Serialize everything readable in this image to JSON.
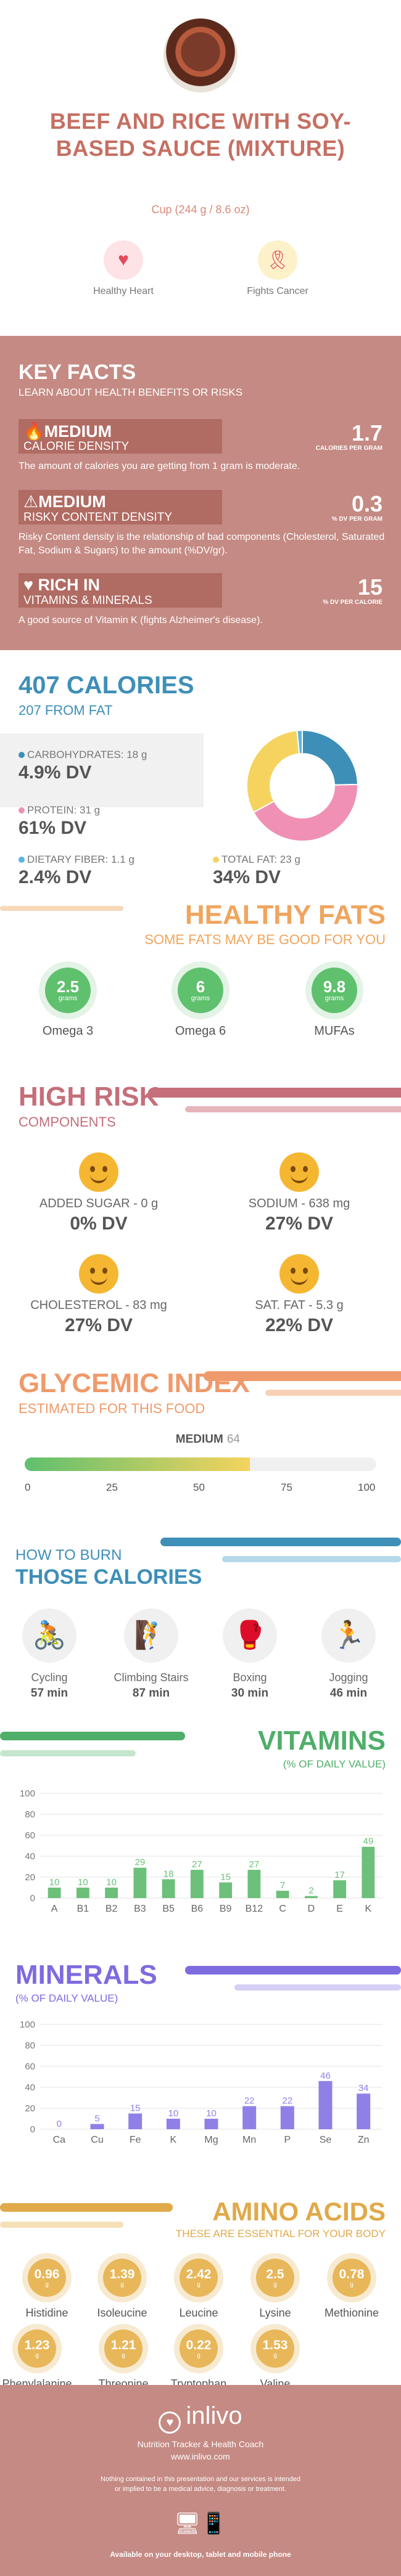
{
  "header": {
    "title": "BEEF AND RICE WITH SOY-BASED SAUCE (MIXTURE)",
    "serving": "Cup (244 g / 8.6 oz)",
    "badges": [
      {
        "label": "Healthy Heart",
        "icon": "heart-icon"
      },
      {
        "label": "Fights Cancer",
        "icon": "ribbon-icon"
      }
    ]
  },
  "key_facts": {
    "title": "KEY FACTS",
    "subtitle": "LEARN ABOUT HEALTH BENEFITS OR RISKS",
    "rows": [
      {
        "level": "MEDIUM",
        "label": "CALORIE DENSITY",
        "value": "1.7",
        "unit": "CALORIES PER GRAM",
        "desc": "The amount of calories you are getting from 1 gram is moderate."
      },
      {
        "level": "MEDIUM",
        "label": "RISKY CONTENT DENSITY",
        "value": "0.3",
        "unit": "% DV PER GRAM",
        "desc": "Risky Content density is the relationship of bad components (Cholesterol, Saturated Fat, Sodium & Sugars) to the amount (%DV/gr)."
      },
      {
        "level": "RICH IN",
        "label": "VITAMINS & MINERALS",
        "value": "15",
        "unit": "% DV PER CALORIE",
        "desc": "A good source of Vitamin K (fights Alzheimer's disease)."
      }
    ]
  },
  "calories": {
    "title": "407 CALORIES",
    "subtitle": "207 FROM FAT",
    "items": [
      {
        "label": "CARBOHYDRATES: 18 g",
        "dv": "4.9% DV",
        "color": "#3e8fb8"
      },
      {
        "label": "PROTEIN: 31 g",
        "dv": "61% DV",
        "color": "#f090b4"
      },
      {
        "label": "DIETARY FIBER: 1.1 g",
        "dv": "2.4% DV",
        "color": "#5ab4e6"
      },
      {
        "label": "TOTAL FAT: 23 g",
        "dv": "34% DV",
        "color": "#f5d35e"
      }
    ]
  },
  "chart_data": [
    {
      "type": "pie",
      "title": "",
      "categories": [
        "Carbohydrates",
        "Protein",
        "Fat",
        "Fiber"
      ],
      "values": [
        18,
        31,
        23,
        1.1
      ],
      "colors": [
        "#3e8fb8",
        "#f090b4",
        "#f5d35e",
        "#5ab4e6"
      ]
    },
    {
      "type": "bar",
      "title": "VITAMINS",
      "categories": [
        "A",
        "B1",
        "B2",
        "B3",
        "B5",
        "B6",
        "B9",
        "B12",
        "C",
        "D",
        "E",
        "K"
      ],
      "values": [
        10,
        10,
        10,
        29,
        18,
        27,
        15,
        27,
        7,
        2,
        17,
        49
      ],
      "ylim": [
        0,
        100
      ],
      "yticks": [
        0,
        20,
        40,
        60,
        80,
        100
      ],
      "color": "#6cc079"
    },
    {
      "type": "bar",
      "title": "MINERALS",
      "categories": [
        "Ca",
        "Cu",
        "Fe",
        "K",
        "Mg",
        "Mn",
        "P",
        "Se",
        "Zn"
      ],
      "values": [
        0,
        5,
        15,
        10,
        10,
        22,
        22,
        46,
        34
      ],
      "ylim": [
        0,
        100
      ],
      "yticks": [
        0,
        20,
        40,
        60,
        80,
        100
      ],
      "color": "#8f80e8"
    }
  ],
  "healthy_fats": {
    "title": "HEALTHY FATS",
    "subtitle": "SOME FATS MAY BE GOOD FOR YOU",
    "items": [
      {
        "value": "2.5",
        "unit": "grams",
        "name": "Omega 3"
      },
      {
        "value": "6",
        "unit": "grams",
        "name": "Omega 6"
      },
      {
        "value": "9.8",
        "unit": "grams",
        "name": "MUFAs"
      }
    ]
  },
  "high_risk": {
    "title": "HIGH RISK",
    "subtitle": "COMPONENTS",
    "items": [
      {
        "label": "ADDED SUGAR - 0 g",
        "dv": "0% DV"
      },
      {
        "label": "SODIUM - 638 mg",
        "dv": "27% DV"
      },
      {
        "label": "CHOLESTEROL - 83 mg",
        "dv": "27% DV"
      },
      {
        "label": "SAT. FAT - 5.3 g",
        "dv": "22% DV"
      }
    ]
  },
  "glycemic": {
    "title": "GLYCEMIC INDEX",
    "subtitle": "ESTIMATED FOR THIS FOOD",
    "level": "MEDIUM",
    "value": "64",
    "fraction": 0.64,
    "ticks": [
      "0",
      "25",
      "50",
      "75",
      "100"
    ]
  },
  "burn": {
    "title_line1": "HOW TO BURN",
    "title_line2": "THOSE CALORIES",
    "activities": [
      {
        "name": "Cycling",
        "minutes": "57 min",
        "icon": "cycling-icon"
      },
      {
        "name": "Climbing Stairs",
        "minutes": "87 min",
        "icon": "stairs-icon"
      },
      {
        "name": "Boxing",
        "minutes": "30 min",
        "icon": "boxing-icon"
      },
      {
        "name": "Jogging",
        "minutes": "46 min",
        "icon": "jogging-icon"
      }
    ]
  },
  "vitamins": {
    "title": "VITAMINS",
    "subtitle": "(% OF DAILY VALUE)"
  },
  "minerals": {
    "title": "MINERALS",
    "subtitle": "(% OF DAILY VALUE)"
  },
  "amino": {
    "title": "AMINO ACIDS",
    "subtitle": "THESE ARE ESSENTIAL FOR YOUR BODY",
    "unit": "g",
    "items": [
      {
        "value": "0.96",
        "name": "Histidine"
      },
      {
        "value": "1.39",
        "name": "Isoleucine"
      },
      {
        "value": "2.42",
        "name": "Leucine"
      },
      {
        "value": "2.5",
        "name": "Lysine"
      },
      {
        "value": "0.78",
        "name": "Methionine"
      },
      {
        "value": "1.23",
        "name": "Phenylalanine"
      },
      {
        "value": "1.21",
        "name": "Threonine"
      },
      {
        "value": "0.22",
        "name": "Tryptophan"
      },
      {
        "value": "1.53",
        "name": "Valine"
      }
    ]
  },
  "footer": {
    "brand": "inlivo",
    "tagline": "Nutrition Tracker & Health Coach",
    "url": "www.inlivo.com",
    "disclaimer": "Nothing contained in this presentation and our services is intended or implied to be a medical advice, diagnosis or treatment.",
    "available": "Available on your desktop, tablet and mobile phone"
  }
}
